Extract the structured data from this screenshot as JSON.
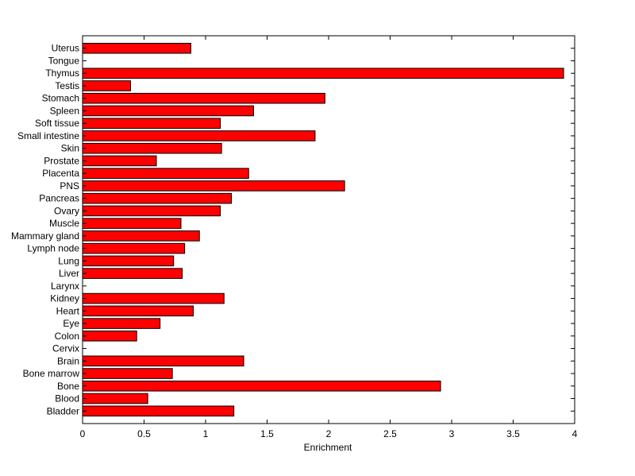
{
  "chart_data": {
    "type": "bar",
    "orientation": "horizontal",
    "xlabel": "Enrichment",
    "ylabel": "",
    "title": "",
    "xlim": [
      0,
      4
    ],
    "xticks": [
      "0",
      "0.5",
      "1",
      "1.5",
      "2",
      "2.5",
      "3",
      "3.5",
      "4"
    ],
    "grid": false,
    "bar_color": "#ff0000",
    "categories": [
      "Uterus",
      "Tongue",
      "Thymus",
      "Testis",
      "Stomach",
      "Spleen",
      "Soft tissue",
      "Small intestine",
      "Skin",
      "Prostate",
      "Placenta",
      "PNS",
      "Pancreas",
      "Ovary",
      "Muscle",
      "Mammary gland",
      "Lymph node",
      "Lung",
      "Liver",
      "Larynx",
      "Kidney",
      "Heart",
      "Eye",
      "Colon",
      "Cervix",
      "Brain",
      "Bone marrow",
      "Bone",
      "Blood",
      "Bladder"
    ],
    "values": [
      0.88,
      0.0,
      3.91,
      0.39,
      1.97,
      1.39,
      1.12,
      1.89,
      1.13,
      0.6,
      1.35,
      2.13,
      1.21,
      1.12,
      0.8,
      0.95,
      0.83,
      0.74,
      0.81,
      0.0,
      1.15,
      0.9,
      0.63,
      0.44,
      0.0,
      1.31,
      0.73,
      2.91,
      0.53,
      1.23
    ]
  }
}
